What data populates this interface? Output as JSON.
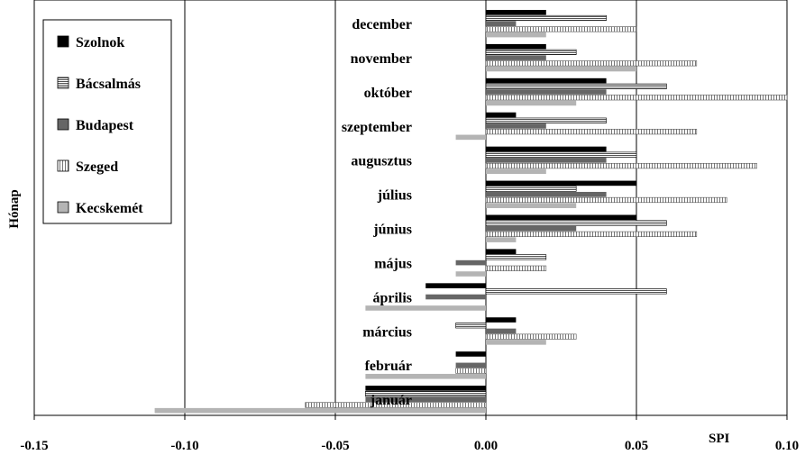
{
  "chart_data": {
    "type": "bar",
    "orientation": "horizontal",
    "title": "",
    "xlabel": "SPI",
    "ylabel": "Hónap",
    "xlim": [
      -0.15,
      0.1
    ],
    "xticks": [
      "-0.15",
      "-0.10",
      "-0.05",
      "0.00",
      "0.05",
      "0.10"
    ],
    "grid": "vertical",
    "legend_position": "top-left",
    "categories": [
      "december",
      "november",
      "október",
      "szeptember",
      "augusztus",
      "július",
      "június",
      "május",
      "április",
      "március",
      "február",
      "január"
    ],
    "series": [
      {
        "name": "Szolnok",
        "pattern": "solid-black",
        "values": [
          0.02,
          0.02,
          0.04,
          0.01,
          0.04,
          0.05,
          0.05,
          0.01,
          -0.02,
          0.01,
          -0.01,
          -0.04
        ]
      },
      {
        "name": "Bácsalmás",
        "pattern": "horizontal-stripes",
        "values": [
          0.04,
          0.03,
          0.06,
          0.04,
          0.05,
          0.03,
          0.06,
          0.02,
          0.06,
          -0.01,
          0.0,
          -0.04
        ]
      },
      {
        "name": "Budapest",
        "pattern": "solid-dark-gray",
        "values": [
          0.01,
          0.02,
          0.04,
          0.02,
          0.04,
          0.04,
          0.03,
          -0.01,
          -0.02,
          0.01,
          -0.01,
          -0.04
        ]
      },
      {
        "name": "Szeged",
        "pattern": "vertical-stripes",
        "values": [
          0.05,
          0.07,
          0.1,
          0.07,
          0.09,
          0.08,
          0.07,
          0.02,
          0.0,
          0.03,
          -0.01,
          -0.06
        ]
      },
      {
        "name": "Kecskemét",
        "pattern": "solid-light-gray",
        "values": [
          0.02,
          0.05,
          0.03,
          -0.01,
          0.02,
          0.03,
          0.01,
          -0.01,
          -0.04,
          0.02,
          -0.04,
          -0.11
        ]
      }
    ]
  },
  "colors": {
    "szolnok": "#000000",
    "bacsalmas_fill": "#ffffff",
    "bacsalmas_stripe": "#555555",
    "budapest": "#666666",
    "szeged_fill": "#ffffff",
    "szeged_stripe": "#777777",
    "kecskemet": "#b4b4b4"
  }
}
